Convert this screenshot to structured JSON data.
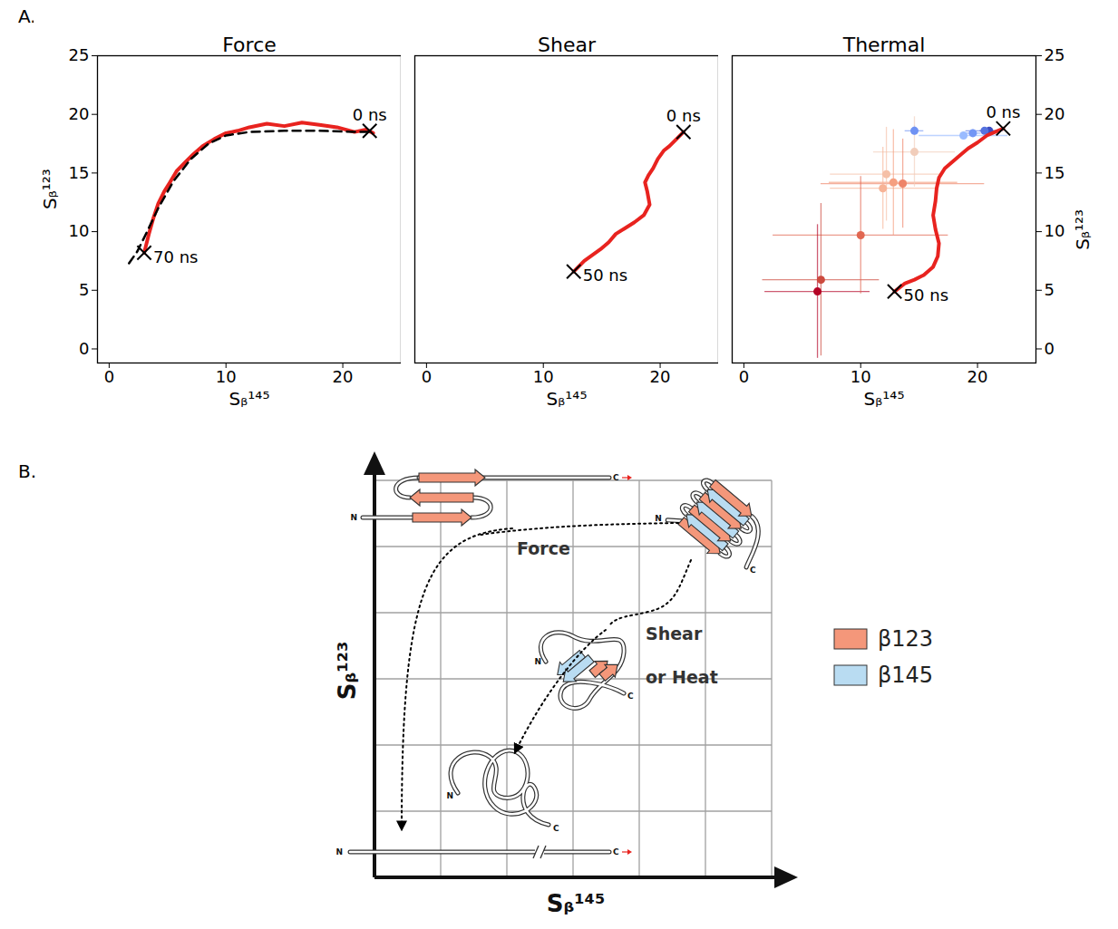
{
  "panel_labels": [
    "A.",
    "B."
  ],
  "chart_data": [
    {
      "type": "line",
      "title": "Force",
      "xlabel": "Sᵦ¹⁴⁵",
      "ylabel": "Sᵦ¹²³",
      "xlim": [
        -1,
        25
      ],
      "ylim": [
        -1.2,
        25
      ],
      "xticks": [
        0,
        10,
        20
      ],
      "yticks": [
        0,
        5,
        10,
        15,
        20,
        25
      ],
      "series": [
        {
          "type": "line",
          "color": "#e8231f",
          "line_style": "solid",
          "x": [
            22.6,
            22.0,
            21.0,
            19.5,
            18.0,
            16.5,
            15.0,
            13.5,
            12.0,
            11.0,
            10.0,
            9.0,
            8.0,
            7.2,
            6.5,
            5.8,
            5.2,
            4.7,
            4.2,
            3.8,
            3.4,
            3.0
          ],
          "y": [
            18.4,
            18.7,
            18.5,
            18.9,
            19.1,
            19.3,
            19.0,
            19.2,
            18.9,
            18.6,
            18.4,
            17.9,
            17.3,
            16.6,
            15.9,
            15.2,
            14.2,
            13.4,
            12.4,
            11.2,
            9.8,
            8.2
          ]
        },
        {
          "type": "line",
          "color": "#000000",
          "line_style": "dashed",
          "x": [
            1.7,
            2.4,
            3.2,
            4.2,
            5.5,
            7.0,
            8.5,
            10.0,
            12.0,
            15.0,
            18.0,
            21.0,
            22.3
          ],
          "y": [
            7.3,
            8.3,
            9.9,
            12.0,
            14.3,
            16.2,
            17.5,
            18.2,
            18.5,
            18.6,
            18.6,
            18.5,
            18.5
          ]
        }
      ],
      "annotations": [
        {
          "x": 22.3,
          "y": 18.6,
          "text": "0 ns",
          "marker": "x"
        },
        {
          "x": 3.0,
          "y": 8.2,
          "text": "70 ns",
          "marker": "x"
        }
      ]
    },
    {
      "type": "line",
      "title": "Shear",
      "xlabel": "Sᵦ¹⁴⁵",
      "xlim": [
        -1,
        25
      ],
      "ylim": [
        -1.2,
        25
      ],
      "xticks": [
        0,
        10,
        20
      ],
      "yticks": [
        0,
        5,
        10,
        15,
        20,
        25
      ],
      "tick_labels": "x",
      "series": [
        {
          "type": "line",
          "color": "#e8231f",
          "line_style": "solid",
          "x": [
            22.0,
            21.4,
            20.8,
            20.3,
            19.8,
            19.4,
            19.0,
            18.7,
            18.9,
            19.1,
            18.6,
            17.8,
            17.0,
            16.2,
            15.6,
            14.9,
            14.2,
            13.5,
            12.6
          ],
          "y": [
            18.5,
            17.9,
            17.3,
            16.9,
            16.2,
            15.4,
            14.8,
            14.2,
            13.4,
            12.3,
            11.4,
            10.8,
            10.3,
            9.8,
            9.1,
            8.5,
            8.0,
            7.5,
            6.6
          ]
        }
      ],
      "annotations": [
        {
          "x": 22.0,
          "y": 18.5,
          "text": "0 ns",
          "marker": "x"
        },
        {
          "x": 12.6,
          "y": 6.6,
          "text": "50 ns",
          "marker": "x"
        }
      ]
    },
    {
      "type": "line",
      "title": "Thermal",
      "xlabel": "Sᵦ¹⁴⁵",
      "ylabel": "Sᵦ¹²³",
      "xlim": [
        -1,
        25
      ],
      "ylim": [
        -1.2,
        25
      ],
      "xticks": [
        0,
        10,
        20
      ],
      "yticks": [
        0,
        5,
        10,
        15,
        20,
        25
      ],
      "series": [
        {
          "type": "scatter",
          "marker": "circle",
          "x": [
            21.0,
            20.6,
            19.6,
            18.8,
            14.6,
            14.6,
            12.2,
            11.9,
            12.8,
            13.6,
            10.0,
            6.6,
            6.3
          ],
          "y": [
            18.6,
            18.6,
            18.4,
            18.2,
            18.6,
            16.8,
            14.9,
            13.7,
            14.2,
            14.1,
            9.7,
            5.9,
            4.9
          ],
          "x_error": [
            0.8,
            1.6,
            0.7,
            3.8,
            0.8,
            3.5,
            4.8,
            4.5,
            5.5,
            7.0,
            7.5,
            5.0,
            4.5
          ],
          "y_error": [
            0.2,
            0.3,
            0.3,
            0.3,
            0.4,
            3.0,
            4.0,
            3.5,
            4.5,
            3.8,
            5.0,
            6.5,
            5.7
          ],
          "colors": [
            "#3b4cc0",
            "#5572df",
            "#7396f5",
            "#9abbff",
            "#6f92f3",
            "#f1cdba",
            "#f5c0a7",
            "#f7b396",
            "#f5a081",
            "#ee8468",
            "#e16751",
            "#cc4a3e",
            "#b40426"
          ]
        },
        {
          "type": "line",
          "color": "#e8231f",
          "line_style": "solid",
          "x": [
            22.2,
            21.5,
            20.8,
            20.0,
            19.2,
            18.6,
            17.9,
            17.2,
            16.7,
            16.5,
            16.4,
            16.2,
            16.4,
            16.7,
            16.6,
            16.2,
            15.4,
            14.6,
            13.8,
            12.9
          ],
          "y": [
            18.8,
            18.5,
            18.2,
            17.6,
            17.1,
            16.6,
            16.0,
            15.4,
            14.6,
            13.7,
            12.6,
            11.4,
            10.2,
            9.0,
            7.9,
            7.0,
            6.3,
            5.9,
            5.6,
            4.9
          ]
        }
      ],
      "annotations": [
        {
          "x": 22.2,
          "y": 18.8,
          "text": "0 ns",
          "marker": "x"
        },
        {
          "x": 12.9,
          "y": 4.9,
          "text": "50 ns",
          "marker": "x"
        }
      ]
    }
  ],
  "diagram": {
    "x_axis_label": "Sᵦ¹⁴⁵",
    "y_axis_label": "Sᵦ¹²³",
    "path_labels": [
      "Force",
      "Shear",
      "or Heat"
    ],
    "terminus_labels": {
      "n": "N",
      "c": "C"
    },
    "legend": [
      {
        "label": "β123",
        "color": "#f4977a"
      },
      {
        "label": "β145",
        "color": "#b9dcf2"
      }
    ]
  }
}
